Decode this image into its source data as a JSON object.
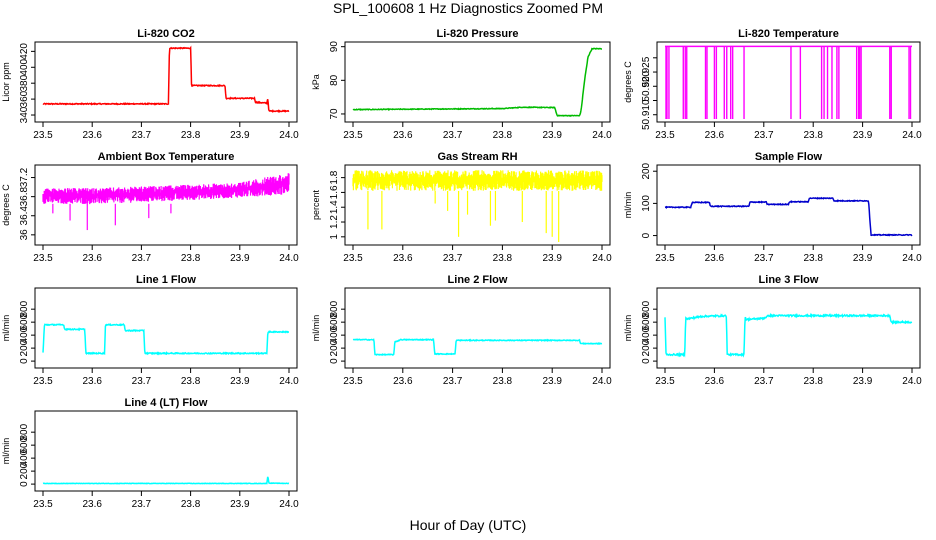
{
  "figure": {
    "title": "SPL_100608  1 Hz Diagnostics Zoomed PM",
    "xlabel": "Hour of Day (UTC)"
  },
  "chart_data": [
    {
      "type": "line",
      "title": "Li-820 CO2",
      "ylabel": "Licor ppm",
      "color": "#ff0000",
      "xlim": [
        23.5,
        24.0
      ],
      "ylim": [
        335,
        428
      ],
      "xticks": [
        "23.5",
        "23.6",
        "23.7",
        "23.8",
        "23.9",
        "24.0"
      ],
      "yticks": [
        340,
        360,
        380,
        400,
        420
      ],
      "noise": 0.6,
      "points": [
        [
          23.5,
          354
        ],
        [
          23.755,
          354
        ],
        [
          23.757,
          424
        ],
        [
          23.8,
          424
        ],
        [
          23.802,
          377
        ],
        [
          23.87,
          377
        ],
        [
          23.872,
          361
        ],
        [
          23.93,
          361
        ],
        [
          23.932,
          356
        ],
        [
          23.955,
          355
        ],
        [
          23.957,
          361
        ],
        [
          23.959,
          345
        ],
        [
          24.0,
          345
        ]
      ]
    },
    {
      "type": "line",
      "title": "Li-820 Pressure",
      "ylabel": "kPa",
      "color": "#00bb00",
      "xlim": [
        23.5,
        24.0
      ],
      "ylim": [
        68.5,
        90.5
      ],
      "xticks": [
        "23.5",
        "23.6",
        "23.7",
        "23.8",
        "23.9",
        "24.0"
      ],
      "yticks": [
        70,
        80,
        90
      ],
      "noise": 0.1,
      "points": [
        [
          23.5,
          71.3
        ],
        [
          23.8,
          71.6
        ],
        [
          23.84,
          72.0
        ],
        [
          23.905,
          71.9
        ],
        [
          23.91,
          69.5
        ],
        [
          23.955,
          69.5
        ],
        [
          23.958,
          71
        ],
        [
          23.965,
          80
        ],
        [
          23.972,
          87
        ],
        [
          23.98,
          89.4
        ],
        [
          24.0,
          89.4
        ]
      ]
    },
    {
      "type": "line",
      "title": "Li-820 Temperature",
      "ylabel": "degrees C",
      "color": "#ff00ff",
      "xlim": [
        23.5,
        24.0
      ],
      "ylim": [
        50.9085,
        50.9345
      ],
      "xticks": [
        "23.5",
        "23.6",
        "23.7",
        "23.8",
        "23.9",
        "24.0"
      ],
      "yticks": [
        50.91,
        50.915,
        50.92,
        50.925,
        50.93
      ],
      "ytickLabels": [
        "50.910",
        "",
        "50.920",
        "50.925",
        ""
      ],
      "baseline": 50.934,
      "low": 50.9085,
      "spikes": [
        23.502,
        23.504,
        23.508,
        23.537,
        23.541,
        23.544,
        23.582,
        23.585,
        23.6,
        23.604,
        23.62,
        23.625,
        23.633,
        23.637,
        23.66,
        23.755,
        23.774,
        23.817,
        23.822,
        23.829,
        23.838,
        23.848,
        23.852,
        23.888,
        23.892,
        23.894,
        23.897,
        23.955,
        23.958,
        23.994,
        23.997
      ]
    },
    {
      "type": "line",
      "title": "Ambient Box Temperature",
      "ylabel": "degrees C",
      "color": "#ff00ff",
      "xlim": [
        23.5,
        24.0
      ],
      "ylim": [
        35.85,
        37.4
      ],
      "xticks": [
        "23.5",
        "23.6",
        "23.7",
        "23.8",
        "23.9",
        "24.0"
      ],
      "yticks": [
        36.0,
        36.4,
        36.8,
        37.2
      ],
      "band": [
        [
          23.5,
          36.65,
          36.98
        ],
        [
          23.6,
          36.64,
          36.98
        ],
        [
          23.75,
          36.7,
          37.03
        ],
        [
          23.9,
          36.78,
          37.1
        ],
        [
          24.0,
          36.85,
          37.3
        ]
      ],
      "dips": [
        [
          23.555,
          36.3
        ],
        [
          23.59,
          36.1
        ],
        [
          23.647,
          36.2
        ],
        [
          23.715,
          36.35
        ],
        [
          23.52,
          36.45
        ],
        [
          23.76,
          36.45
        ]
      ]
    },
    {
      "type": "line",
      "title": "Gas Stream RH",
      "ylabel": "percent",
      "color": "#ffff00",
      "xlim": [
        23.5,
        24.0
      ],
      "ylim": [
        0.93,
        1.93
      ],
      "xticks": [
        "23.5",
        "23.6",
        "23.7",
        "23.8",
        "23.9",
        "24.0"
      ],
      "yticks": [
        1.0,
        1.2,
        1.4,
        1.6,
        1.8
      ],
      "band": [
        [
          23.5,
          1.62,
          1.9
        ],
        [
          24.0,
          1.62,
          1.9
        ]
      ],
      "dips": [
        [
          23.53,
          1.1
        ],
        [
          23.558,
          1.1
        ],
        [
          23.665,
          1.45
        ],
        [
          23.69,
          1.35
        ],
        [
          23.712,
          1.0
        ],
        [
          23.73,
          1.3
        ],
        [
          23.776,
          1.15
        ],
        [
          23.786,
          1.22
        ],
        [
          23.84,
          1.2
        ],
        [
          23.888,
          1.05
        ],
        [
          23.9,
          1.0
        ],
        [
          23.913,
          0.93
        ]
      ]
    },
    {
      "type": "line",
      "title": "Sample Flow",
      "ylabel": "ml/min",
      "color": "#0000cc",
      "xlim": [
        23.5,
        24.0
      ],
      "ylim": [
        -20,
        210
      ],
      "xticks": [
        "23.5",
        "23.6",
        "23.7",
        "23.8",
        "23.9",
        "24.0"
      ],
      "yticks": [
        0,
        100,
        200
      ],
      "noise": 1.2,
      "points": [
        [
          23.5,
          88
        ],
        [
          23.552,
          88
        ],
        [
          23.555,
          103
        ],
        [
          23.59,
          103
        ],
        [
          23.592,
          91
        ],
        [
          23.67,
          91
        ],
        [
          23.672,
          104
        ],
        [
          23.705,
          104
        ],
        [
          23.707,
          97
        ],
        [
          23.75,
          97
        ],
        [
          23.752,
          105
        ],
        [
          23.79,
          105
        ],
        [
          23.792,
          116
        ],
        [
          23.84,
          116
        ],
        [
          23.842,
          108
        ],
        [
          23.912,
          108
        ],
        [
          23.917,
          2
        ],
        [
          24.0,
          2
        ]
      ]
    },
    {
      "type": "line",
      "title": "Line 1 Flow",
      "ylabel": "ml/min",
      "color": "#00ffff",
      "xlim": [
        23.5,
        24.0
      ],
      "ylim": [
        -60,
        1080
      ],
      "xticks": [
        "23.5",
        "23.6",
        "23.7",
        "23.8",
        "23.9",
        "24.0"
      ],
      "yticks": [
        0,
        200,
        400,
        600,
        800
      ],
      "noise": 8,
      "points": [
        [
          23.5,
          130
        ],
        [
          23.503,
          560
        ],
        [
          23.542,
          560
        ],
        [
          23.544,
          490
        ],
        [
          23.585,
          490
        ],
        [
          23.587,
          120
        ],
        [
          23.625,
          120
        ],
        [
          23.627,
          560
        ],
        [
          23.665,
          560
        ],
        [
          23.667,
          470
        ],
        [
          23.705,
          470
        ],
        [
          23.707,
          120
        ],
        [
          23.955,
          120
        ],
        [
          23.957,
          450
        ],
        [
          24.0,
          450
        ]
      ]
    },
    {
      "type": "line",
      "title": "Line 2 Flow",
      "ylabel": "ml/min",
      "color": "#00ffff",
      "xlim": [
        23.5,
        24.0
      ],
      "ylim": [
        -60,
        1080
      ],
      "xticks": [
        "23.5",
        "23.6",
        "23.7",
        "23.8",
        "23.9",
        "24.0"
      ],
      "yticks": [
        0,
        200,
        400,
        600,
        800
      ],
      "noise": 6,
      "points": [
        [
          23.5,
          330
        ],
        [
          23.542,
          330
        ],
        [
          23.544,
          100
        ],
        [
          23.582,
          100
        ],
        [
          23.584,
          300
        ],
        [
          23.59,
          310
        ],
        [
          23.595,
          330
        ],
        [
          23.662,
          330
        ],
        [
          23.664,
          110
        ],
        [
          23.705,
          110
        ],
        [
          23.707,
          320
        ],
        [
          23.955,
          320
        ],
        [
          23.957,
          270
        ],
        [
          24.0,
          270
        ]
      ]
    },
    {
      "type": "line",
      "title": "Line 3 Flow",
      "ylabel": "ml/min",
      "color": "#00ffff",
      "xlim": [
        23.5,
        24.0
      ],
      "ylim": [
        -60,
        1080
      ],
      "xticks": [
        "23.5",
        "23.6",
        "23.7",
        "23.8",
        "23.9",
        "24.0"
      ],
      "yticks": [
        0,
        200,
        400,
        600,
        800
      ],
      "noise": 12,
      "points": [
        [
          23.5,
          680
        ],
        [
          23.502,
          100
        ],
        [
          23.54,
          100
        ],
        [
          23.542,
          680
        ],
        [
          23.545,
          650
        ],
        [
          23.575,
          690
        ],
        [
          23.624,
          700
        ],
        [
          23.626,
          100
        ],
        [
          23.66,
          100
        ],
        [
          23.662,
          700
        ],
        [
          23.664,
          640
        ],
        [
          23.7,
          660
        ],
        [
          23.71,
          700
        ],
        [
          23.955,
          700
        ],
        [
          23.958,
          600
        ],
        [
          24.0,
          600
        ]
      ]
    },
    {
      "type": "line",
      "title": "Line 4 (LT) Flow",
      "ylabel": "ml/min",
      "color": "#00ffff",
      "xlim": [
        23.5,
        24.0
      ],
      "ylim": [
        -60,
        1080
      ],
      "xticks": [
        "23.5",
        "23.6",
        "23.7",
        "23.8",
        "23.9",
        "24.0"
      ],
      "yticks": [
        0,
        200,
        400,
        600,
        800
      ],
      "noise": 3,
      "points": [
        [
          23.5,
          10
        ],
        [
          23.955,
          10
        ],
        [
          23.957,
          130
        ],
        [
          23.959,
          15
        ],
        [
          24.0,
          10
        ]
      ]
    }
  ]
}
